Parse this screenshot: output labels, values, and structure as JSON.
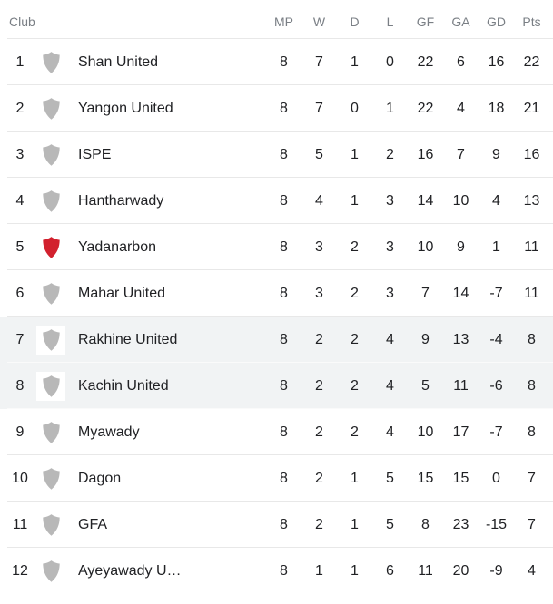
{
  "table": {
    "headers": {
      "club": "Club",
      "stats": [
        "MP",
        "W",
        "D",
        "L",
        "GF",
        "GA",
        "GD",
        "Pts"
      ]
    },
    "colors": {
      "header_text": "#7a7f85",
      "body_text": "#202124",
      "divider": "#e8e8e8",
      "row_highlight": "#f1f3f4",
      "shield_gray": "#b8b8b8",
      "shield_red": "#d2212e"
    },
    "rows": [
      {
        "rank": "1",
        "club": "Shan United",
        "shield_color": "#b8b8b8",
        "highlighted": false,
        "stats": [
          "8",
          "7",
          "1",
          "0",
          "22",
          "6",
          "16",
          "22"
        ]
      },
      {
        "rank": "2",
        "club": "Yangon United",
        "shield_color": "#b8b8b8",
        "highlighted": false,
        "stats": [
          "8",
          "7",
          "0",
          "1",
          "22",
          "4",
          "18",
          "21"
        ]
      },
      {
        "rank": "3",
        "club": "ISPE",
        "shield_color": "#b8b8b8",
        "highlighted": false,
        "stats": [
          "8",
          "5",
          "1",
          "2",
          "16",
          "7",
          "9",
          "16"
        ]
      },
      {
        "rank": "4",
        "club": "Hantharwady",
        "shield_color": "#b8b8b8",
        "highlighted": false,
        "stats": [
          "8",
          "4",
          "1",
          "3",
          "14",
          "10",
          "4",
          "13"
        ]
      },
      {
        "rank": "5",
        "club": "Yadanarbon",
        "shield_color": "#d2212e",
        "highlighted": false,
        "stats": [
          "8",
          "3",
          "2",
          "3",
          "10",
          "9",
          "1",
          "11"
        ]
      },
      {
        "rank": "6",
        "club": "Mahar United",
        "shield_color": "#b8b8b8",
        "highlighted": false,
        "stats": [
          "8",
          "3",
          "2",
          "3",
          "7",
          "14",
          "-7",
          "11"
        ]
      },
      {
        "rank": "7",
        "club": "Rakhine United",
        "shield_color": "#b8b8b8",
        "highlighted": true,
        "stats": [
          "8",
          "2",
          "2",
          "4",
          "9",
          "13",
          "-4",
          "8"
        ]
      },
      {
        "rank": "8",
        "club": "Kachin United",
        "shield_color": "#b8b8b8",
        "highlighted": true,
        "stats": [
          "8",
          "2",
          "2",
          "4",
          "5",
          "11",
          "-6",
          "8"
        ]
      },
      {
        "rank": "9",
        "club": "Myawady",
        "shield_color": "#b8b8b8",
        "highlighted": false,
        "stats": [
          "8",
          "2",
          "2",
          "4",
          "10",
          "17",
          "-7",
          "8"
        ]
      },
      {
        "rank": "10",
        "club": "Dagon",
        "shield_color": "#b8b8b8",
        "highlighted": false,
        "stats": [
          "8",
          "2",
          "1",
          "5",
          "15",
          "15",
          "0",
          "7"
        ]
      },
      {
        "rank": "11",
        "club": "GFA",
        "shield_color": "#b8b8b8",
        "highlighted": false,
        "stats": [
          "8",
          "2",
          "1",
          "5",
          "8",
          "23",
          "-15",
          "7"
        ]
      },
      {
        "rank": "12",
        "club": "Ayeyawady U…",
        "shield_color": "#b8b8b8",
        "highlighted": false,
        "stats": [
          "8",
          "1",
          "1",
          "6",
          "11",
          "20",
          "-9",
          "4"
        ]
      }
    ]
  }
}
